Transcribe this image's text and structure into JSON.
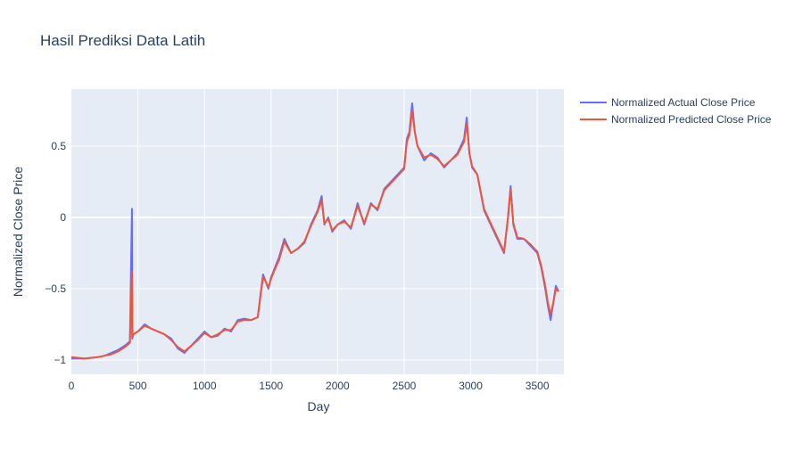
{
  "chart_data": {
    "type": "line",
    "title": "Hasil Prediksi Data Latih",
    "xlabel": "Day",
    "ylabel": "Normalized Close Price",
    "xlim": [
      0,
      3700
    ],
    "ylim": [
      -1.1,
      0.9
    ],
    "xticks": [
      0,
      500,
      1000,
      1500,
      2000,
      2500,
      3000,
      3500
    ],
    "yticks": [
      -1,
      -0.5,
      0,
      0.5
    ],
    "ytick_labels": [
      "−1",
      "−0.5",
      "0",
      "0.5"
    ],
    "grid": true,
    "legend_position": "top-right, outside plot",
    "colors": {
      "plot_bg": "#e5ecf6",
      "grid": "#ffffff",
      "text": "#2a3f5f"
    },
    "x": [
      0,
      100,
      200,
      250,
      300,
      350,
      400,
      440,
      455,
      458,
      465,
      500,
      550,
      600,
      650,
      700,
      750,
      800,
      850,
      900,
      950,
      1000,
      1050,
      1100,
      1150,
      1200,
      1250,
      1300,
      1350,
      1400,
      1420,
      1440,
      1460,
      1480,
      1500,
      1530,
      1560,
      1600,
      1650,
      1700,
      1750,
      1800,
      1850,
      1880,
      1900,
      1930,
      1960,
      2000,
      2050,
      2100,
      2150,
      2200,
      2250,
      2300,
      2350,
      2400,
      2450,
      2500,
      2520,
      2540,
      2560,
      2580,
      2600,
      2650,
      2700,
      2750,
      2800,
      2850,
      2900,
      2950,
      2970,
      2990,
      3010,
      3050,
      3100,
      3150,
      3200,
      3250,
      3280,
      3300,
      3320,
      3350,
      3400,
      3450,
      3500,
      3530,
      3560,
      3580,
      3600,
      3620,
      3640,
      3660
    ],
    "series": [
      {
        "name": "Normalized Actual Close Price",
        "color": "#636efa",
        "values": [
          -0.99,
          -0.99,
          -0.98,
          -0.97,
          -0.95,
          -0.93,
          -0.9,
          -0.87,
          0.06,
          -0.85,
          -0.82,
          -0.8,
          -0.75,
          -0.78,
          -0.8,
          -0.82,
          -0.85,
          -0.92,
          -0.95,
          -0.9,
          -0.85,
          -0.8,
          -0.84,
          -0.83,
          -0.78,
          -0.8,
          -0.72,
          -0.71,
          -0.72,
          -0.7,
          -0.55,
          -0.4,
          -0.45,
          -0.5,
          -0.42,
          -0.35,
          -0.28,
          -0.15,
          -0.25,
          -0.22,
          -0.18,
          -0.05,
          0.05,
          0.15,
          -0.05,
          0.0,
          -0.1,
          -0.05,
          -0.02,
          -0.08,
          0.1,
          -0.05,
          0.1,
          0.05,
          0.2,
          0.25,
          0.3,
          0.35,
          0.55,
          0.6,
          0.8,
          0.6,
          0.5,
          0.4,
          0.45,
          0.42,
          0.35,
          0.4,
          0.45,
          0.55,
          0.7,
          0.45,
          0.35,
          0.3,
          0.05,
          -0.05,
          -0.15,
          -0.25,
          0.0,
          0.22,
          -0.05,
          -0.15,
          -0.15,
          -0.2,
          -0.25,
          -0.35,
          -0.5,
          -0.62,
          -0.72,
          -0.6,
          -0.48,
          -0.52
        ]
      },
      {
        "name": "Normalized Predicted Close Price",
        "color": "#ef553b",
        "values": [
          -0.98,
          -0.99,
          -0.98,
          -0.97,
          -0.96,
          -0.94,
          -0.91,
          -0.88,
          -0.38,
          -0.84,
          -0.82,
          -0.8,
          -0.76,
          -0.78,
          -0.8,
          -0.82,
          -0.86,
          -0.91,
          -0.94,
          -0.9,
          -0.86,
          -0.81,
          -0.84,
          -0.82,
          -0.79,
          -0.79,
          -0.73,
          -0.72,
          -0.72,
          -0.7,
          -0.56,
          -0.42,
          -0.45,
          -0.49,
          -0.43,
          -0.36,
          -0.3,
          -0.17,
          -0.25,
          -0.22,
          -0.17,
          -0.06,
          0.04,
          0.12,
          -0.04,
          -0.01,
          -0.09,
          -0.05,
          -0.03,
          -0.07,
          0.08,
          -0.04,
          0.09,
          0.06,
          0.19,
          0.24,
          0.29,
          0.34,
          0.53,
          0.58,
          0.75,
          0.6,
          0.5,
          0.42,
          0.44,
          0.41,
          0.36,
          0.4,
          0.44,
          0.53,
          0.66,
          0.45,
          0.36,
          0.3,
          0.06,
          -0.04,
          -0.14,
          -0.24,
          -0.01,
          0.2,
          -0.04,
          -0.14,
          -0.15,
          -0.19,
          -0.24,
          -0.34,
          -0.48,
          -0.6,
          -0.68,
          -0.6,
          -0.5,
          -0.52
        ]
      }
    ]
  }
}
